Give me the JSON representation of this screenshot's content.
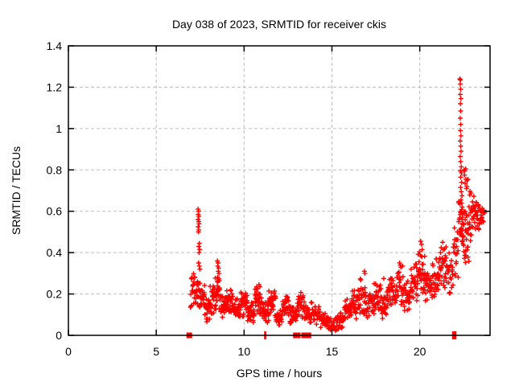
{
  "chart_data": {
    "type": "scatter",
    "title": "Day 038 of 2023, SRMTID for receiver ckis",
    "xlabel": "GPS time / hours",
    "ylabel": "SRMTID / TECUs",
    "xlim": [
      0,
      24
    ],
    "ylim": [
      0,
      1.4
    ],
    "xticks": [
      0,
      5,
      10,
      15,
      20
    ],
    "xtick_labels": [
      "0",
      "5",
      "10",
      "15",
      "20"
    ],
    "yticks": [
      0,
      0.2,
      0.4,
      0.6,
      0.8,
      1.0,
      1.2,
      1.4
    ],
    "ytick_labels": [
      "0",
      "0.2",
      "0.4",
      "0.6",
      "0.8",
      "1",
      "1.2",
      "1.4"
    ],
    "grid": true,
    "grid_color": "#bdbdbd",
    "legend_position": "none",
    "marker": "plus",
    "marker_color": "#ff0000",
    "border_color": "#000000",
    "series": [
      {
        "name": "SRMTID",
        "points": [
          [
            7.38,
            0.61
          ],
          [
            7.41,
            0.6
          ],
          [
            7.39,
            0.585
          ],
          [
            7.43,
            0.575
          ],
          [
            7.38,
            0.56
          ],
          [
            7.42,
            0.55
          ],
          [
            7.44,
            0.54
          ],
          [
            7.39,
            0.525
          ],
          [
            7.42,
            0.51
          ],
          [
            7.4,
            0.5
          ],
          [
            7.45,
            0.445
          ],
          [
            7.42,
            0.43
          ],
          [
            7.47,
            0.415
          ],
          [
            7.44,
            0.4
          ],
          [
            7.41,
            0.35
          ],
          [
            7.45,
            0.335
          ],
          [
            7.48,
            0.32
          ],
          [
            8.48,
            0.36
          ],
          [
            8.52,
            0.35
          ],
          [
            8.5,
            0.335
          ],
          [
            8.55,
            0.325
          ],
          [
            8.53,
            0.31
          ],
          [
            8.57,
            0.3
          ],
          [
            10.85,
            0.245
          ],
          [
            10.9,
            0.235
          ],
          [
            16.85,
            0.31
          ],
          [
            16.88,
            0.3
          ],
          [
            17.95,
            0.275
          ],
          [
            18.85,
            0.35
          ],
          [
            18.9,
            0.34
          ],
          [
            20.05,
            0.455
          ],
          [
            20.1,
            0.44
          ],
          [
            21.3,
            0.45
          ],
          [
            22.28,
            1.24
          ],
          [
            22.32,
            1.235
          ],
          [
            22.3,
            1.215
          ],
          [
            22.33,
            1.19
          ],
          [
            22.3,
            1.165
          ],
          [
            22.34,
            1.145
          ],
          [
            22.31,
            1.12
          ],
          [
            22.33,
            1.085
          ],
          [
            22.3,
            1.05
          ],
          [
            22.33,
            1.02
          ],
          [
            22.31,
            0.99
          ],
          [
            22.34,
            0.965
          ],
          [
            22.3,
            0.94
          ],
          [
            22.33,
            0.915
          ],
          [
            22.35,
            0.89
          ],
          [
            22.3,
            0.865
          ],
          [
            22.33,
            0.84
          ],
          [
            22.36,
            0.815
          ],
          [
            22.31,
            0.795
          ],
          [
            22.37,
            0.785
          ],
          [
            22.33,
            0.765
          ],
          [
            22.38,
            0.74
          ],
          [
            22.32,
            0.715
          ],
          [
            22.36,
            0.695
          ],
          [
            22.4,
            0.675
          ],
          [
            22.34,
            0.655
          ],
          [
            22.38,
            0.64
          ],
          [
            22.42,
            0.62
          ],
          [
            22.36,
            0.6
          ],
          [
            22.44,
            0.585
          ],
          [
            22.4,
            0.56
          ],
          [
            22.46,
            0.535
          ],
          [
            22.42,
            0.505
          ],
          [
            22.48,
            0.475
          ],
          [
            22.52,
            0.8
          ],
          [
            22.56,
            0.795
          ],
          [
            22.61,
            0.805
          ],
          [
            22.55,
            0.775
          ],
          [
            22.62,
            0.755
          ],
          [
            22.58,
            0.735
          ],
          [
            22.66,
            0.71
          ],
          [
            22.7,
            0.75
          ],
          [
            22.74,
            0.755
          ],
          [
            22.68,
            0.72
          ],
          [
            23.5,
            0.6
          ],
          [
            23.55,
            0.615
          ],
          [
            23.6,
            0.595
          ],
          [
            23.65,
            0.605
          ]
        ],
        "dense_bands": [
          [
            6.95,
            7.15,
            0.12,
            0.3,
            16
          ],
          [
            7.15,
            7.45,
            0.14,
            0.3,
            22
          ],
          [
            7.45,
            7.75,
            0.1,
            0.26,
            26
          ],
          [
            7.75,
            8.05,
            0.06,
            0.18,
            24
          ],
          [
            8.05,
            8.35,
            0.1,
            0.24,
            24
          ],
          [
            8.35,
            8.65,
            0.12,
            0.3,
            26
          ],
          [
            8.65,
            9.0,
            0.08,
            0.2,
            28
          ],
          [
            9.0,
            9.4,
            0.1,
            0.22,
            30
          ],
          [
            9.4,
            9.8,
            0.07,
            0.18,
            30
          ],
          [
            9.8,
            10.2,
            0.09,
            0.21,
            30
          ],
          [
            10.2,
            10.6,
            0.06,
            0.16,
            30
          ],
          [
            10.6,
            11.0,
            0.1,
            0.24,
            32
          ],
          [
            11.0,
            11.4,
            0.06,
            0.16,
            30
          ],
          [
            11.4,
            11.8,
            0.09,
            0.22,
            30
          ],
          [
            11.8,
            12.2,
            0.05,
            0.14,
            28
          ],
          [
            12.2,
            12.6,
            0.08,
            0.2,
            30
          ],
          [
            12.6,
            13.0,
            0.05,
            0.14,
            28
          ],
          [
            13.0,
            13.45,
            0.08,
            0.22,
            32
          ],
          [
            13.45,
            13.9,
            0.06,
            0.16,
            28
          ],
          [
            13.9,
            14.35,
            0.05,
            0.14,
            26
          ],
          [
            14.35,
            14.8,
            0.03,
            0.11,
            26
          ],
          [
            14.8,
            15.3,
            0.02,
            0.09,
            28
          ],
          [
            15.3,
            15.7,
            0.03,
            0.11,
            26
          ],
          [
            15.7,
            16.1,
            0.06,
            0.18,
            28
          ],
          [
            16.1,
            16.5,
            0.08,
            0.22,
            28
          ],
          [
            16.5,
            16.95,
            0.1,
            0.28,
            30
          ],
          [
            16.95,
            17.4,
            0.08,
            0.2,
            28
          ],
          [
            17.4,
            17.8,
            0.12,
            0.26,
            30
          ],
          [
            17.8,
            18.2,
            0.08,
            0.22,
            28
          ],
          [
            18.2,
            18.65,
            0.12,
            0.28,
            30
          ],
          [
            18.65,
            19.1,
            0.14,
            0.34,
            32
          ],
          [
            19.1,
            19.5,
            0.12,
            0.28,
            30
          ],
          [
            19.5,
            19.9,
            0.16,
            0.36,
            30
          ],
          [
            19.9,
            20.3,
            0.2,
            0.44,
            32
          ],
          [
            20.3,
            20.7,
            0.15,
            0.32,
            28
          ],
          [
            20.7,
            21.1,
            0.18,
            0.38,
            28
          ],
          [
            21.1,
            21.5,
            0.22,
            0.44,
            30
          ],
          [
            21.5,
            21.9,
            0.2,
            0.4,
            26
          ],
          [
            21.9,
            22.2,
            0.28,
            0.52,
            22
          ],
          [
            22.2,
            22.5,
            0.42,
            0.65,
            26
          ],
          [
            22.5,
            22.8,
            0.35,
            0.62,
            26
          ],
          [
            22.8,
            23.1,
            0.45,
            0.7,
            26
          ],
          [
            23.1,
            23.45,
            0.5,
            0.66,
            24
          ],
          [
            23.45,
            23.7,
            0.54,
            0.63,
            12
          ]
        ],
        "zero_markers": [
          {
            "x": 6.88,
            "style": "square"
          },
          {
            "x": 11.2,
            "style": "tick"
          },
          {
            "x": 12.95,
            "style": "square"
          },
          {
            "x": 13.05,
            "style": "square"
          },
          {
            "x": 13.42,
            "style": "square"
          },
          {
            "x": 13.5,
            "style": "square"
          },
          {
            "x": 13.58,
            "style": "square"
          },
          {
            "x": 13.66,
            "style": "square"
          },
          {
            "x": 21.9,
            "style": "tick"
          },
          {
            "x": 22.02,
            "style": "tick"
          }
        ]
      }
    ]
  }
}
